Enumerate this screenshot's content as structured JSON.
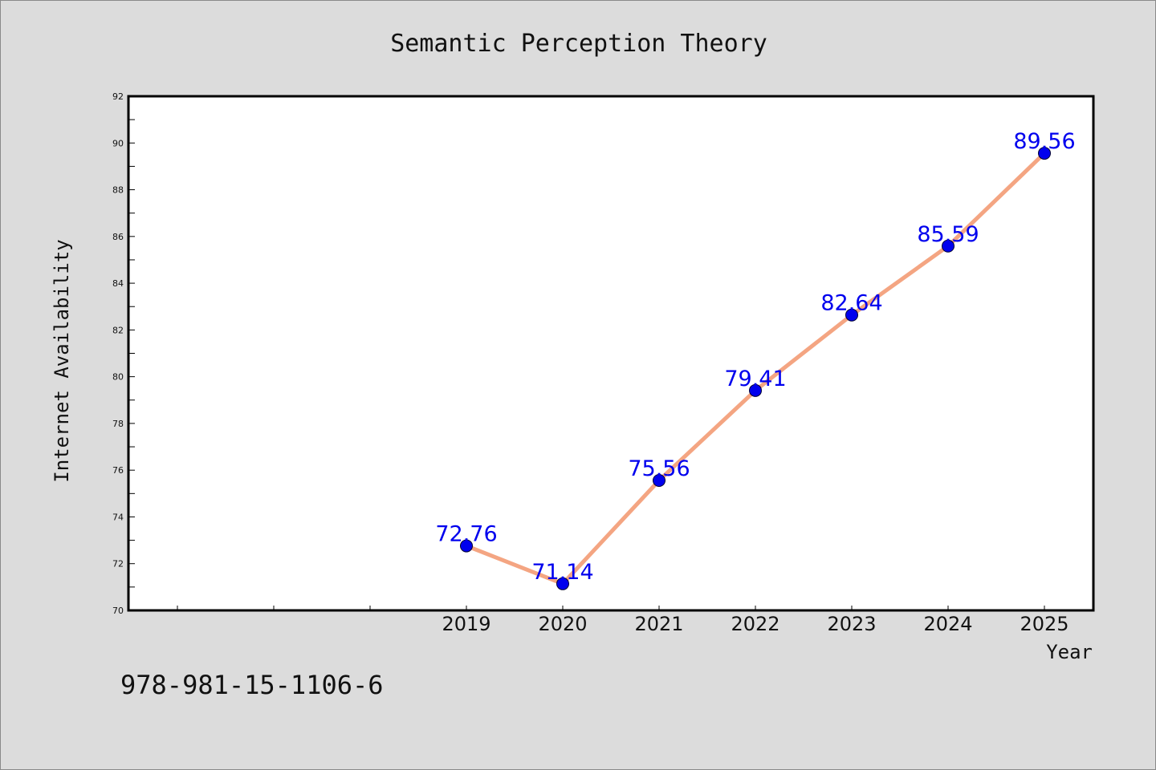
{
  "chart_data": {
    "type": "line",
    "title": "Semantic Perception Theory",
    "xlabel": "Year",
    "ylabel": "Internet Availability",
    "categories": [
      "2019",
      "2020",
      "2021",
      "2022",
      "2023",
      "2024",
      "2025"
    ],
    "values": [
      72.76,
      71.14,
      75.56,
      79.41,
      82.64,
      85.59,
      89.56
    ],
    "data_labels": [
      "72.76",
      "71.14",
      "75.56",
      "79.41",
      "82.64",
      "85.59",
      "89.56"
    ],
    "ylim": [
      70,
      92
    ],
    "yticks": [
      "70",
      "72",
      "74",
      "76",
      "78",
      "80",
      "82",
      "84",
      "86",
      "88",
      "90",
      "92"
    ],
    "grid": false,
    "legend": "none",
    "colors": {
      "line": "#f4a582",
      "marker": "#0000ee",
      "labels": "#0000ee",
      "background": "#dcdcdc",
      "plot_area": "#ffffff"
    }
  },
  "footer": {
    "code": "978-981-15-1106-6"
  }
}
